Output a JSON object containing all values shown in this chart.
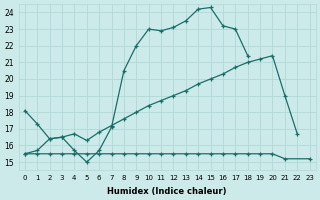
{
  "xlabel": "Humidex (Indice chaleur)",
  "bg_color": "#cdeaea",
  "grid_color": "#b0d8d8",
  "line_color": "#1a6e6a",
  "xlim": [
    -0.5,
    23.5
  ],
  "ylim": [
    14.5,
    24.5
  ],
  "xticks": [
    0,
    1,
    2,
    3,
    4,
    5,
    6,
    7,
    8,
    9,
    10,
    11,
    12,
    13,
    14,
    15,
    16,
    17,
    18,
    19,
    20,
    21,
    22,
    23
  ],
  "yticks": [
    15,
    16,
    17,
    18,
    19,
    20,
    21,
    22,
    23,
    24
  ],
  "line1_x": [
    0,
    1,
    2,
    3,
    4,
    5,
    6,
    7,
    8,
    9,
    10,
    11,
    12,
    13,
    14,
    15,
    16,
    17,
    18
  ],
  "line1_y": [
    18.1,
    17.3,
    16.4,
    16.5,
    15.7,
    15.0,
    15.7,
    17.1,
    20.5,
    22.0,
    23.0,
    22.9,
    23.1,
    23.5,
    24.2,
    24.3,
    23.2,
    23.0,
    21.4
  ],
  "line2_x": [
    0,
    1,
    2,
    3,
    4,
    5,
    6,
    7,
    8,
    9,
    10,
    11,
    12,
    13,
    14,
    15,
    16,
    17,
    18,
    19,
    20,
    21,
    22
  ],
  "line2_y": [
    15.5,
    15.7,
    16.4,
    16.5,
    16.7,
    16.3,
    16.8,
    17.2,
    17.6,
    18.0,
    18.4,
    18.7,
    19.0,
    19.3,
    19.7,
    20.0,
    20.3,
    20.7,
    21.0,
    21.2,
    21.4,
    19.0,
    16.7
  ],
  "line3_x": [
    0,
    1,
    2,
    3,
    4,
    5,
    6,
    7,
    8,
    9,
    10,
    11,
    12,
    13,
    14,
    15,
    16,
    17,
    18,
    19,
    20,
    21,
    23
  ],
  "line3_y": [
    15.5,
    15.5,
    15.5,
    15.5,
    15.5,
    15.5,
    15.5,
    15.5,
    15.5,
    15.5,
    15.5,
    15.5,
    15.5,
    15.5,
    15.5,
    15.5,
    15.5,
    15.5,
    15.5,
    15.5,
    15.5,
    15.2,
    15.2
  ]
}
